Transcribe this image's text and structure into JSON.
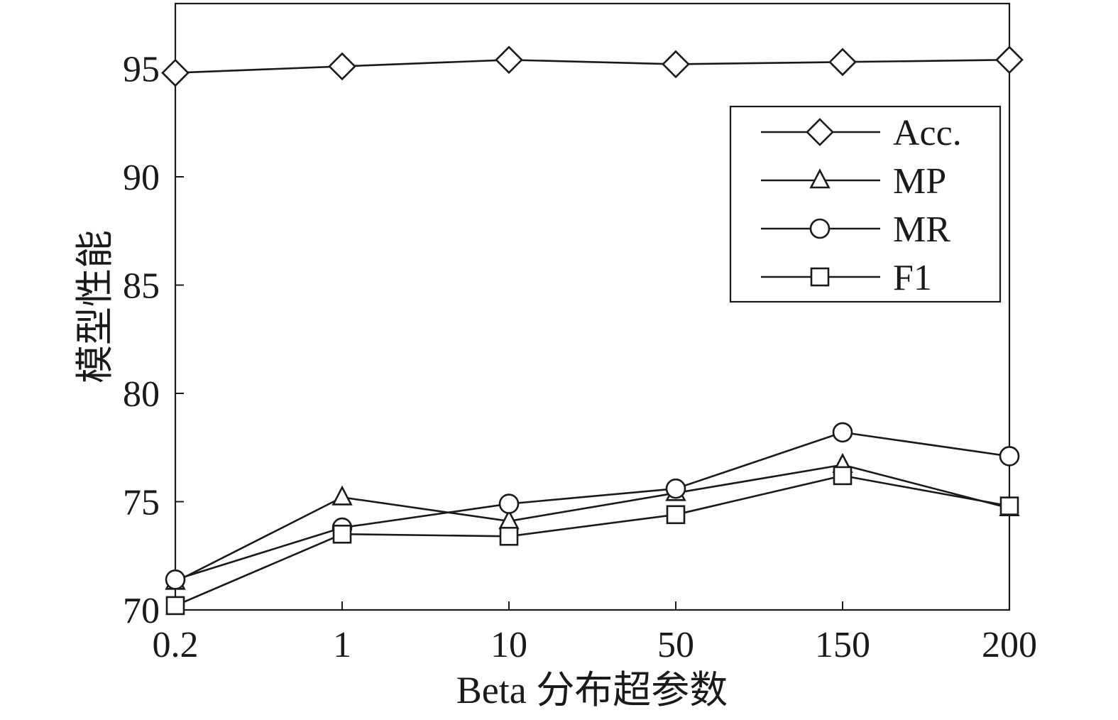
{
  "chart_data": {
    "type": "line",
    "categories": [
      "0.2",
      "1",
      "10",
      "50",
      "150",
      "200"
    ],
    "series": [
      {
        "name": "Acc.",
        "marker": "diamond",
        "values": [
          94.8,
          95.1,
          95.4,
          95.2,
          95.3,
          95.4
        ]
      },
      {
        "name": "MP",
        "marker": "triangle",
        "values": [
          71.3,
          75.2,
          74.1,
          75.4,
          76.7,
          74.7
        ]
      },
      {
        "name": "MR",
        "marker": "circle",
        "values": [
          71.4,
          73.8,
          74.9,
          75.6,
          78.2,
          77.1
        ]
      },
      {
        "name": "F1",
        "marker": "square",
        "values": [
          70.2,
          73.5,
          73.4,
          74.4,
          76.2,
          74.8
        ]
      }
    ],
    "xlabel": "Beta 分布超参数",
    "ylabel": "模型性能",
    "ylim": [
      70,
      98
    ],
    "yticks": [
      70,
      75,
      80,
      85,
      90,
      95
    ],
    "grid": false,
    "legend_position": "top-right",
    "line_color": "#1a1a1a",
    "marker_fill": "#ffffff"
  }
}
